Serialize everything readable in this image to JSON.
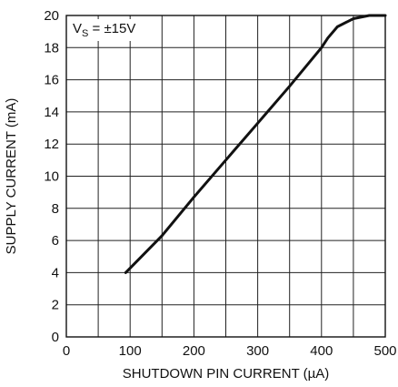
{
  "chart_data": {
    "type": "line",
    "title": "",
    "xlabel": "SHUTDOWN PIN CURRENT (µA)",
    "ylabel": "SUPPLY CURRENT (mA)",
    "xlim": [
      0,
      500
    ],
    "ylim": [
      0,
      20
    ],
    "x_ticks": [
      "0",
      "100",
      "200",
      "300",
      "400",
      "500"
    ],
    "y_ticks": [
      "0",
      "2",
      "4",
      "6",
      "8",
      "10",
      "12",
      "14",
      "16",
      "18",
      "20"
    ],
    "x_grid_step": 50,
    "y_grid_step": 2,
    "grid": true,
    "annotation": {
      "main": "V",
      "sub": "S",
      "rest": " = ±15V"
    },
    "series": [
      {
        "x": [
          93,
          150,
          200,
          250,
          300,
          350,
          400,
          410,
          425,
          450,
          475,
          500
        ],
        "y": [
          4.0,
          6.3,
          8.7,
          11.0,
          13.3,
          15.6,
          18.0,
          18.6,
          19.3,
          19.8,
          20.0,
          20.0
        ]
      }
    ]
  }
}
